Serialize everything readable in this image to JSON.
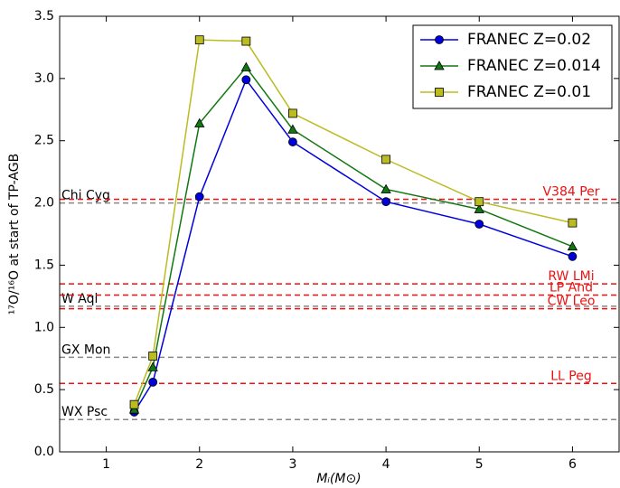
{
  "chart_data": {
    "type": "line",
    "x_label": "Mᵢ(M⊙)",
    "y_label": "¹⁷O/¹⁶O at start of TP-AGB",
    "xlim": [
      0.5,
      6.5
    ],
    "xticks": [
      1,
      2,
      3,
      4,
      5,
      6
    ],
    "ylim": [
      0,
      3.5
    ],
    "yticks": [
      {
        "value": 0,
        "label": "0.0"
      },
      0.5,
      {
        "value": 1,
        "label": "1.0"
      },
      1.5,
      {
        "value": 2,
        "label": "2.0"
      },
      2.5,
      {
        "value": 3,
        "label": "3.0"
      },
      3.5
    ],
    "legend": "upper right",
    "series": [
      {
        "name": "FRANEC Z=0.02",
        "color": "#0000dd",
        "marker": "circle",
        "x": [
          1.3,
          1.5,
          2,
          2.5,
          3,
          4,
          5,
          6
        ],
        "values": [
          0.32,
          0.56,
          2.05,
          2.99,
          2.49,
          2.01,
          1.83,
          1.57
        ]
      },
      {
        "name": "FRANEC Z=0.014",
        "color": "#117711",
        "marker": "triangle",
        "x": [
          1.3,
          1.5,
          2,
          2.5,
          3,
          4,
          5,
          6
        ],
        "values": [
          0.34,
          0.68,
          2.64,
          3.09,
          2.59,
          2.11,
          1.95,
          1.65
        ]
      },
      {
        "name": "FRANEC Z=0.01",
        "color": "#bbbb22",
        "marker": "square",
        "x": [
          1.3,
          1.5,
          2,
          2.5,
          3,
          4,
          5,
          6
        ],
        "values": [
          0.38,
          0.77,
          3.31,
          3.3,
          2.72,
          2.35,
          2.01,
          1.84
        ]
      }
    ],
    "reference_lines": [
      {
        "label": "Chi Cyg",
        "value": 2.0,
        "color": "#888888",
        "side": "left"
      },
      {
        "label": "W Aql",
        "value": 1.17,
        "color": "#888888",
        "side": "left"
      },
      {
        "label": "GX Mon",
        "value": 0.76,
        "color": "#888888",
        "side": "left"
      },
      {
        "label": "WX Psc",
        "value": 0.26,
        "color": "#888888",
        "side": "left"
      },
      {
        "label": "V384 Per",
        "value": 2.03,
        "color": "#ee1111",
        "side": "right"
      },
      {
        "label": "RW LMi",
        "value": 1.35,
        "color": "#ee1111",
        "side": "right"
      },
      {
        "label": "LP And",
        "value": 1.26,
        "color": "#ee1111",
        "side": "right"
      },
      {
        "label": "CW Leo",
        "value": 1.15,
        "color": "#ee1111",
        "side": "right"
      },
      {
        "label": "LL Peg",
        "value": 0.55,
        "color": "#ee1111",
        "side": "right"
      }
    ]
  }
}
